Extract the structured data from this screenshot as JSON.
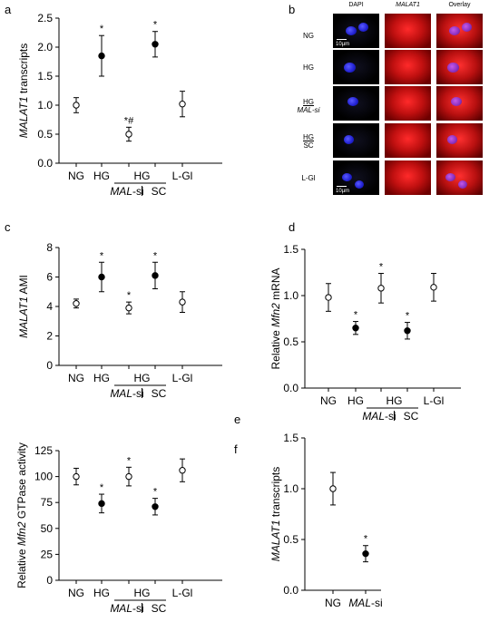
{
  "panel_letters": [
    "a",
    "b",
    "c",
    "d",
    "e",
    "f"
  ],
  "microscopy": {
    "columns": [
      "DAPI",
      "MALAT1",
      "Overlay"
    ],
    "rows": [
      {
        "label_top": "NG",
        "label_bottom": ""
      },
      {
        "label_top": "HG",
        "label_bottom": ""
      },
      {
        "label_top": "HG",
        "label_bottom": "MAL-si"
      },
      {
        "label_top": "HG",
        "label_bottom": "SC"
      },
      {
        "label_top": "L-Gl",
        "label_bottom": ""
      }
    ],
    "scale_label": "10µm"
  },
  "chart_data": [
    {
      "panel": "a",
      "type": "scatter",
      "ylabel": "MALAT1 transcripts",
      "categories": [
        "NG",
        "HG",
        "",
        "",
        "L-Gl"
      ],
      "group_labels": [
        {
          "top": "HG",
          "left": "MAL-si",
          "right": "SC"
        }
      ],
      "ylim": [
        0,
        2.5
      ],
      "yticks": [
        "0.0",
        "0.5",
        "1.0",
        "1.5",
        "2.0",
        "2.5"
      ],
      "points": [
        {
          "y": 1.0,
          "err": 0.13,
          "filled": false,
          "annot": ""
        },
        {
          "y": 1.85,
          "err": 0.35,
          "filled": true,
          "annot": "*"
        },
        {
          "y": 0.5,
          "err": 0.12,
          "filled": false,
          "annot": "*#"
        },
        {
          "y": 2.05,
          "err": 0.22,
          "filled": true,
          "annot": "*"
        },
        {
          "y": 1.02,
          "err": 0.22,
          "filled": false,
          "annot": ""
        }
      ]
    },
    {
      "panel": "c",
      "type": "scatter",
      "ylabel": "MALAT1 AMI",
      "categories": [
        "NG",
        "HG",
        "",
        "",
        "L-Gl"
      ],
      "group_labels": [
        {
          "top": "HG",
          "left": "MAL-si",
          "right": "SC"
        }
      ],
      "ylim": [
        0,
        8
      ],
      "yticks": [
        "0",
        "2",
        "4",
        "6",
        "8"
      ],
      "points": [
        {
          "y": 4.2,
          "err": 0.3,
          "filled": false,
          "annot": ""
        },
        {
          "y": 6.0,
          "err": 1.0,
          "filled": true,
          "annot": "*"
        },
        {
          "y": 3.9,
          "err": 0.4,
          "filled": false,
          "annot": "*"
        },
        {
          "y": 6.1,
          "err": 0.9,
          "filled": true,
          "annot": "*"
        },
        {
          "y": 4.3,
          "err": 0.7,
          "filled": false,
          "annot": ""
        }
      ]
    },
    {
      "panel": "d",
      "type": "scatter",
      "ylabel": "Relative Mfn2 mRNA",
      "categories": [
        "NG",
        "HG",
        "",
        "",
        "L-Gl"
      ],
      "group_labels": [
        {
          "top": "HG",
          "left": "MAL-si",
          "right": "SC"
        }
      ],
      "ylim": [
        0,
        1.5
      ],
      "yticks": [
        "0.0",
        "0.5",
        "1.0",
        "1.5"
      ],
      "points": [
        {
          "y": 0.98,
          "err": 0.15,
          "filled": false,
          "annot": ""
        },
        {
          "y": 0.65,
          "err": 0.07,
          "filled": true,
          "annot": "*"
        },
        {
          "y": 1.08,
          "err": 0.16,
          "filled": false,
          "annot": "*"
        },
        {
          "y": 0.62,
          "err": 0.09,
          "filled": true,
          "annot": "*"
        },
        {
          "y": 1.09,
          "err": 0.15,
          "filled": false,
          "annot": ""
        }
      ]
    },
    {
      "panel": "e",
      "type": "scatter",
      "ylabel": "Relative Mfn2 GTPase activity",
      "categories": [
        "NG",
        "HG",
        "",
        "",
        "L-Gl"
      ],
      "group_labels": [
        {
          "top": "HG",
          "left": "MAL-si",
          "right": "SC"
        }
      ],
      "ylim": [
        0,
        125
      ],
      "yticks": [
        "0",
        "25",
        "50",
        "75",
        "100",
        "125"
      ],
      "points": [
        {
          "y": 100,
          "err": 8,
          "filled": false,
          "annot": ""
        },
        {
          "y": 74,
          "err": 9,
          "filled": true,
          "annot": "*"
        },
        {
          "y": 100,
          "err": 9,
          "filled": false,
          "annot": "*"
        },
        {
          "y": 71,
          "err": 8,
          "filled": true,
          "annot": "*"
        },
        {
          "y": 106,
          "err": 11,
          "filled": false,
          "annot": ""
        }
      ]
    },
    {
      "panel": "f",
      "type": "scatter",
      "ylabel": "MALAT1 transcripts",
      "categories": [
        "NG",
        "MAL-si"
      ],
      "group_labels": [],
      "ylim": [
        0,
        1.5
      ],
      "yticks": [
        "0.0",
        "0.5",
        "1.0",
        "1.5"
      ],
      "points": [
        {
          "y": 1.0,
          "err": 0.16,
          "filled": false,
          "annot": ""
        },
        {
          "y": 0.36,
          "err": 0.08,
          "filled": true,
          "annot": "*"
        }
      ]
    }
  ]
}
